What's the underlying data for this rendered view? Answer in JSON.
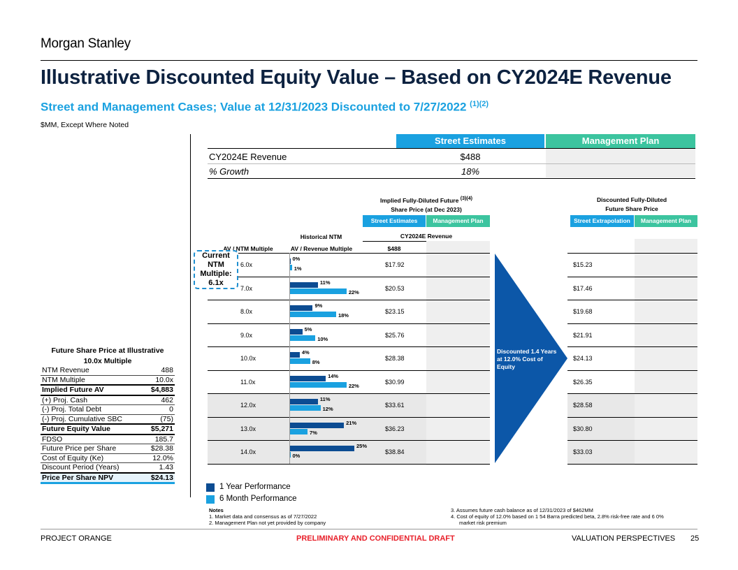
{
  "header": {
    "logo": "Morgan Stanley",
    "title": "Illustrative Discounted Equity Value – Based on CY2024E Revenue",
    "subtitle": "Street and Management Cases; Value at 12/31/2023 Discounted to 7/27/2022",
    "subtitle_notes": "(1)(2)",
    "units": "$MM, Except Where Noted"
  },
  "summary": {
    "street_header": "Street Estimates",
    "mgmt_header": "Management Plan",
    "rows": [
      {
        "label": "CY2024E Revenue",
        "street": "$488",
        "mgmt": ""
      },
      {
        "label": "% Growth",
        "street": "18%",
        "mgmt": ""
      }
    ]
  },
  "grid": {
    "implied_header_line1": "Implied Fully-Diluted Future",
    "implied_header_note": "(3)(4)",
    "implied_header_line2": "Share Price (at Dec 2023)",
    "discounted_header_line1": "Discounted Fully-Diluted",
    "discounted_header_line2": "Future Share Price",
    "btn_street_estimates": "Street Estimates",
    "btn_management_plan": "Management Plan",
    "btn_street_extrapolation": "Street Extrapolation",
    "btn_management_plan_2": "Management Plan",
    "historical_ntm": "Historical NTM",
    "cy2024e_revenue": "CY2024E Revenue",
    "av_ntm_multiple": "AV / NTM Multiple",
    "av_revenue_multiple": "AV / Revenue Multiple",
    "revenue_value": "$488",
    "arrow_text": "Discounted 1.4 Years at 12.0% Cost of Equity",
    "callout": "Current NTM Multiple: 6.1x",
    "rows": [
      {
        "multiple": "6.0x",
        "perf_1y": 0,
        "perf_6m": 1,
        "perf_1y_label": "0%",
        "perf_6m_label": "1%",
        "implied": "$17.92",
        "discounted": "$15.23",
        "shaded": false
      },
      {
        "multiple": "7.0x",
        "perf_1y": 11,
        "perf_6m": 22,
        "perf_1y_label": "11%",
        "perf_6m_label": "22%",
        "implied": "$20.53",
        "discounted": "$17.46",
        "shaded": false
      },
      {
        "multiple": "8.0x",
        "perf_1y": 9,
        "perf_6m": 18,
        "perf_1y_label": "9%",
        "perf_6m_label": "18%",
        "implied": "$23.15",
        "discounted": "$19.68",
        "shaded": false
      },
      {
        "multiple": "9.0x",
        "perf_1y": 5,
        "perf_6m": 10,
        "perf_1y_label": "5%",
        "perf_6m_label": "10%",
        "implied": "$25.76",
        "discounted": "$21.91",
        "shaded": false
      },
      {
        "multiple": "10.0x",
        "perf_1y": 4,
        "perf_6m": 8,
        "perf_1y_label": "4%",
        "perf_6m_label": "8%",
        "implied": "$28.38",
        "discounted": "$24.13",
        "shaded": false
      },
      {
        "multiple": "11.0x",
        "perf_1y": 14,
        "perf_6m": 22,
        "perf_1y_label": "14%",
        "perf_6m_label": "22%",
        "implied": "$30.99",
        "discounted": "$26.35",
        "shaded": false
      },
      {
        "multiple": "12.0x",
        "perf_1y": 11,
        "perf_6m": 12,
        "perf_1y_label": "11%",
        "perf_6m_label": "12%",
        "implied": "$33.61",
        "discounted": "$28.58",
        "shaded": true
      },
      {
        "multiple": "13.0x",
        "perf_1y": 21,
        "perf_6m": 7,
        "perf_1y_label": "21%",
        "perf_6m_label": "7%",
        "implied": "$36.23",
        "discounted": "$30.80",
        "shaded": true
      },
      {
        "multiple": "14.0x",
        "perf_1y": 25,
        "perf_6m": 0,
        "perf_1y_label": "25%",
        "perf_6m_label": "0%",
        "implied": "$38.84",
        "discounted": "$33.03",
        "shaded": true
      }
    ],
    "perf_max": 25
  },
  "legend": {
    "one_year": "1 Year Performance",
    "six_month": "6 Month Performance",
    "one_year_color": "#0c4c92",
    "six_month_color": "#1aa1e0"
  },
  "side_table": {
    "title_line1": "Future Share Price at Illustrative",
    "title_line2": "10.0x Multiple",
    "rows": [
      {
        "label": "NTM Revenue",
        "value": "488",
        "bold": false
      },
      {
        "label": "NTM Multiple",
        "value": "10.0x",
        "bold": false
      },
      {
        "label": "Implied Future AV",
        "value": "$4,883",
        "bold": true
      },
      {
        "label": "(+) Proj. Cash",
        "value": "462",
        "bold": false
      },
      {
        "label": "(-) Proj. Total Debt",
        "value": "0",
        "bold": false
      },
      {
        "label": "(-) Proj. Cumulative SBC",
        "value": "(75)",
        "bold": false
      },
      {
        "label": "Future Equity Value",
        "value": "$5,271",
        "bold": true
      },
      {
        "label": "FDSO",
        "value": "185.7",
        "bold": false
      },
      {
        "label": "Future Price per Share",
        "value": "$28.38",
        "bold": false
      },
      {
        "label": "Cost of Equity (Ke)",
        "value": "12.0%",
        "bold": false
      },
      {
        "label": "Discount Period (Years)",
        "value": "1.43",
        "bold": false
      },
      {
        "label": "Price Per Share NPV",
        "value": "$24.13",
        "bold": true
      }
    ]
  },
  "notes": {
    "heading": "Notes",
    "left": [
      "1.  Market data and consensus as of 7/27/2022",
      "2.  Management Plan not yet provided by company"
    ],
    "right_3": "3.  Assumes future cash balance as of 12/31/2023 of $462MM",
    "right_4a": "4.  Cost of equity of 12.0% based on 1 54 Barra predicted beta, 2.8% risk-free rate and 6 0%",
    "right_4b": "market risk premium"
  },
  "footer": {
    "left": "PROJECT ORANGE",
    "center": "PRELIMINARY AND CONFIDENTIAL DRAFT",
    "right": "VALUATION PERSPECTIVES",
    "page": "25"
  },
  "colors": {
    "street": "#1aa1e0",
    "management": "#3cc49f",
    "arrow": "#0c57a8",
    "title": "#0d2240"
  }
}
